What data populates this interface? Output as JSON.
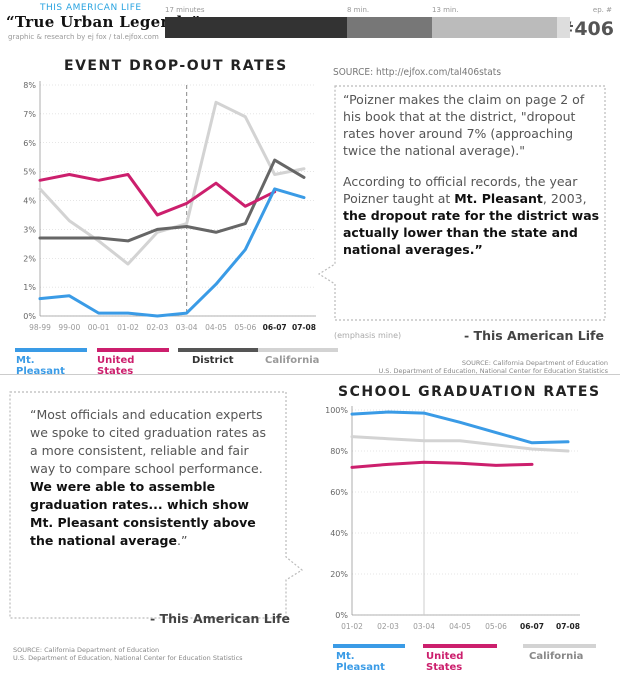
{
  "header": {
    "show": "THIS AMERICAN LIFE",
    "title": "“True Urban Legends”",
    "credit": "graphic & research by ej fox / tal.ejfox.com",
    "timeline_ticks": [
      "17 minutes",
      "8 min.",
      "13 min."
    ],
    "episode_label": "ep. #",
    "episode": "#406",
    "timeline_colors": [
      "#333333",
      "#777777",
      "#bbbbbb",
      "#dddddd"
    ]
  },
  "colors": {
    "mt_pleasant": "#3a9be6",
    "united_states": "#cc1f6d",
    "district": "#666666",
    "california": "#d3d3d3"
  },
  "dropout": {
    "title": "EVENT DROP-OUT RATES",
    "source_link": "SOURCE: http://ejfox.com/tal406stats",
    "quote": {
      "p1": "“Poizner makes the claim on page 2 of his book that at the district, \"dropout rates hover around 7% (approaching twice the national average).\"",
      "p2_a": "According to official records, the year Poizner taught at ",
      "p2_mp": "Mt. Pleasant",
      "p2_b": ", 2003, ",
      "p2_c": "the dropout rate for the district was actually lower than the ",
      "p2_state": "state",
      "p2_and": " and ",
      "p2_nat": "national",
      "p2_end": " averages.”"
    },
    "emphasis": "(emphasis mine)",
    "attribution": "- This American Life",
    "source_small": [
      "SOURCE: California Department of Education",
      "U.S. Department of Education, National Center for Education Statistics"
    ]
  },
  "graduation": {
    "title": "SCHOOL GRADUATION RATES",
    "quote": {
      "a": "“Most officials and education experts we spoke to cited graduation rates as a more consistent, reliable and fair way to compare school performance. ",
      "b": "We were able to assemble graduation rates... which show ",
      "mp": "Mt. Pleasant",
      "c": " consistently above the ",
      "nat": "national average",
      "end": ".”"
    },
    "attribution": "- This American Life",
    "source_small": [
      "SOURCE: California Department of Education",
      "U.S. Department of Education, National Center for Education Statistics"
    ]
  },
  "legend": {
    "mt_pleasant": "Mt. Pleasant",
    "united_states": "United States",
    "district": "District",
    "california": "California"
  },
  "chart_data": [
    {
      "type": "line",
      "title": "EVENT DROP-OUT RATES",
      "categories": [
        "98-99",
        "99-00",
        "00-01",
        "01-02",
        "02-03",
        "03-04",
        "04-05",
        "05-06",
        "06-07",
        "07-08"
      ],
      "bold_categories": [
        "06-07",
        "07-08"
      ],
      "highlight_category": "03-04",
      "ylim": [
        0,
        8
      ],
      "yticks": [
        0,
        1,
        2,
        3,
        4,
        5,
        6,
        7,
        8
      ],
      "ytick_suffix": "%",
      "series": [
        {
          "name": "California",
          "key": "california",
          "values": [
            4.4,
            3.3,
            2.6,
            1.8,
            2.9,
            3.2,
            7.4,
            6.9,
            4.9,
            5.1
          ]
        },
        {
          "name": "District",
          "key": "district",
          "values": [
            2.7,
            2.7,
            2.7,
            2.6,
            3.0,
            3.1,
            2.9,
            3.2,
            5.4,
            4.8
          ]
        },
        {
          "name": "United States",
          "key": "united_states",
          "values": [
            4.7,
            4.9,
            4.7,
            4.9,
            3.5,
            3.9,
            4.6,
            3.8,
            4.3,
            null
          ]
        },
        {
          "name": "Mt. Pleasant",
          "key": "mt_pleasant",
          "values": [
            0.6,
            0.7,
            0.1,
            0.1,
            0.0,
            0.1,
            1.1,
            2.3,
            4.4,
            4.1
          ]
        }
      ]
    },
    {
      "type": "line",
      "title": "SCHOOL GRADUATION RATES",
      "categories": [
        "01-02",
        "02-03",
        "03-04",
        "04-05",
        "05-06",
        "06-07",
        "07-08"
      ],
      "bold_categories": [
        "06-07",
        "07-08"
      ],
      "highlight_category": "03-04",
      "ylim": [
        0,
        100
      ],
      "yticks": [
        0,
        20,
        40,
        60,
        80,
        100
      ],
      "ytick_suffix": "%",
      "series": [
        {
          "name": "California",
          "key": "california",
          "values": [
            87,
            86,
            85,
            85,
            83,
            81,
            80
          ]
        },
        {
          "name": "United States",
          "key": "united_states",
          "values": [
            72,
            73.5,
            74.5,
            74,
            73,
            73.5,
            null
          ]
        },
        {
          "name": "Mt. Pleasant",
          "key": "mt_pleasant",
          "values": [
            98,
            99,
            98.5,
            94,
            89,
            84,
            84.5
          ]
        }
      ]
    }
  ]
}
